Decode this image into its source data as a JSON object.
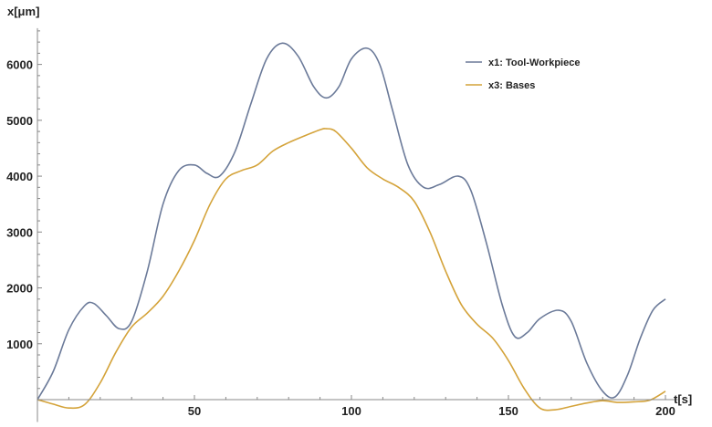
{
  "chart_data": {
    "type": "line",
    "xlabel": "t[s]",
    "ylabel": "x[μm]",
    "xlim": [
      0,
      204
    ],
    "ylim": [
      -400,
      6650
    ],
    "x_ticks": [
      50,
      100,
      150,
      200
    ],
    "y_ticks": [
      1000,
      2000,
      3000,
      4000,
      5000,
      6000
    ],
    "x_minor_step": 10,
    "y_minor_step": 200,
    "grid": false,
    "legend_position": "top-right",
    "series": [
      {
        "name": "x1: Tool-Workpiece",
        "color": "#6b7a99",
        "x": [
          0,
          5,
          10,
          15,
          18,
          22,
          26,
          30,
          35,
          40,
          45,
          50,
          54,
          58,
          63,
          68,
          73,
          78,
          83,
          88,
          92,
          96,
          100,
          105,
          109,
          113,
          118,
          123,
          128,
          134,
          138,
          143,
          148,
          152,
          156,
          160,
          166,
          170,
          175,
          180,
          184,
          188,
          192,
          196,
          200
        ],
        "y": [
          0,
          500,
          1250,
          1680,
          1720,
          1500,
          1270,
          1400,
          2300,
          3500,
          4100,
          4200,
          4050,
          4000,
          4450,
          5300,
          6100,
          6380,
          6150,
          5600,
          5400,
          5600,
          6100,
          6290,
          6000,
          5200,
          4200,
          3800,
          3850,
          4000,
          3750,
          2800,
          1700,
          1130,
          1200,
          1450,
          1600,
          1400,
          650,
          150,
          50,
          450,
          1100,
          1600,
          1800
        ]
      },
      {
        "name": "x3: Bases",
        "color": "#d4a33a",
        "x": [
          0,
          5,
          10,
          15,
          20,
          25,
          30,
          35,
          40,
          45,
          50,
          55,
          60,
          65,
          70,
          75,
          80,
          85,
          90,
          92,
          95,
          100,
          105,
          110,
          115,
          120,
          125,
          130,
          135,
          140,
          145,
          150,
          155,
          160,
          165,
          170,
          175,
          180,
          185,
          190,
          195,
          200
        ],
        "y": [
          0,
          -80,
          -150,
          -90,
          300,
          850,
          1300,
          1550,
          1850,
          2300,
          2850,
          3500,
          3950,
          4100,
          4200,
          4450,
          4600,
          4720,
          4830,
          4850,
          4800,
          4500,
          4150,
          3950,
          3800,
          3550,
          3000,
          2300,
          1700,
          1350,
          1100,
          700,
          200,
          -150,
          -180,
          -120,
          -60,
          -20,
          -50,
          -40,
          -10,
          150
        ]
      }
    ]
  }
}
